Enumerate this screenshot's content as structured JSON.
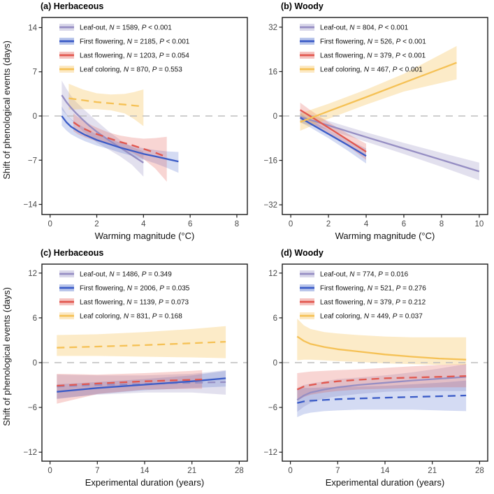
{
  "figure": {
    "ylabel": "Shift of phenological events (days)",
    "background": "#ffffff",
    "axis_color": "#1a1a1a",
    "tick_label_color": "#4a4a4a",
    "zero_line_color": "#bdbdbd"
  },
  "chart_data": [
    {
      "id": "a",
      "type": "line",
      "title": "(a) Herbaceous",
      "xlabel": "Warming magnitude (°C)",
      "ylabel": "Shift of phenological events (days)",
      "xlim": [
        -0.35,
        8.45
      ],
      "ylim": [
        -15.6,
        15.6
      ],
      "x_ticks": [
        0,
        2,
        4,
        6,
        8
      ],
      "y_ticks": [
        -14,
        -7,
        0,
        7,
        14
      ],
      "legend_position": "top-left",
      "grid": false,
      "series": [
        {
          "name": "Leaf-out",
          "N": "1589",
          "P": "< 0.001",
          "color": "#968EC3",
          "band_opacity": 0.28,
          "dashed": false,
          "x": [
            0.5,
            0.7,
            0.9,
            1.1,
            1.4,
            1.7,
            2.0,
            2.5,
            3.0,
            3.5,
            4.0
          ],
          "y": [
            3.3,
            2.2,
            1.3,
            0.5,
            -0.6,
            -1.6,
            -2.5,
            -3.8,
            -5.0,
            -6.2,
            -7.4
          ],
          "upper": [
            5.6,
            4.3,
            3.2,
            2.3,
            1.2,
            0.2,
            -0.8,
            -2.4,
            -3.8,
            -4.9,
            -5.6
          ],
          "lower": [
            1.0,
            0.2,
            -0.6,
            -1.3,
            -2.4,
            -3.3,
            -4.2,
            -5.3,
            -6.4,
            -7.7,
            -9.6
          ]
        },
        {
          "name": "First flowering",
          "N": "2185",
          "P": "< 0.001",
          "color": "#3A5BC7",
          "band_opacity": 0.22,
          "dashed": false,
          "x": [
            0.5,
            0.7,
            0.9,
            1.2,
            1.5,
            2.0,
            2.5,
            3.0,
            3.5,
            4.0,
            4.5,
            5.0,
            5.5
          ],
          "y": [
            0.0,
            -1.0,
            -1.7,
            -2.4,
            -3.0,
            -3.8,
            -4.4,
            -5.0,
            -5.5,
            -6.0,
            -6.4,
            -6.8,
            -7.2
          ],
          "upper": [
            1.5,
            0.3,
            -0.5,
            -1.3,
            -1.9,
            -2.9,
            -3.6,
            -4.2,
            -4.7,
            -5.1,
            -5.4,
            -5.6,
            -5.7
          ],
          "lower": [
            -1.5,
            -2.3,
            -2.9,
            -3.5,
            -4.0,
            -4.7,
            -5.2,
            -5.8,
            -6.3,
            -6.9,
            -7.5,
            -8.2,
            -9.0
          ]
        },
        {
          "name": "Last flowering",
          "N": "1203",
          "P": "= 0.054",
          "color": "#E2574E",
          "band_opacity": 0.25,
          "dashed": true,
          "x": [
            1.0,
            1.2,
            1.5,
            1.8,
            2.1,
            2.5,
            3.0,
            3.5,
            4.0,
            4.5,
            5.0
          ],
          "y": [
            -1.0,
            -1.5,
            -2.1,
            -2.6,
            -3.0,
            -3.5,
            -4.1,
            -4.6,
            -5.2,
            -5.8,
            -6.5
          ],
          "upper": [
            0.4,
            -0.2,
            -0.9,
            -1.5,
            -2.0,
            -2.6,
            -3.1,
            -3.4,
            -3.6,
            -3.5,
            -3.3
          ],
          "lower": [
            -2.4,
            -2.9,
            -3.4,
            -3.8,
            -4.1,
            -4.5,
            -5.1,
            -5.8,
            -6.8,
            -8.3,
            -10.4
          ]
        },
        {
          "name": "Leaf coloring",
          "N": "870",
          "P": "= 0.553",
          "color": "#F5C155",
          "band_opacity": 0.32,
          "dashed": true,
          "x": [
            0.8,
            1.4,
            2.0,
            2.6,
            3.2,
            3.6,
            4.0
          ],
          "y": [
            2.8,
            2.5,
            2.2,
            2.0,
            1.8,
            1.65,
            1.5
          ],
          "upper": [
            5.1,
            4.2,
            3.6,
            3.4,
            3.5,
            3.8,
            4.2
          ],
          "lower": [
            1.0,
            1.1,
            1.1,
            0.9,
            0.4,
            -0.5,
            -1.6
          ]
        }
      ]
    },
    {
      "id": "b",
      "type": "line",
      "title": "(b) Woody",
      "xlabel": "Warming magnitude (°C)",
      "ylabel": "Shift of phenological events (days)",
      "xlim": [
        -0.45,
        10.45
      ],
      "ylim": [
        -35.5,
        35.5
      ],
      "x_ticks": [
        0,
        2,
        4,
        6,
        8,
        10
      ],
      "y_ticks": [
        -32,
        -16,
        0,
        16,
        32
      ],
      "legend_position": "top-left",
      "grid": false,
      "series": [
        {
          "name": "Leaf-out",
          "N": "804",
          "P": "< 0.001",
          "color": "#968EC3",
          "band_opacity": 0.28,
          "dashed": false,
          "x": [
            0.5,
            2,
            4,
            6,
            8,
            10
          ],
          "y": [
            -0.3,
            -3.4,
            -7.6,
            -11.7,
            -15.8,
            -20.0
          ],
          "upper": [
            1.8,
            -1.8,
            -5.9,
            -9.7,
            -13.3,
            -16.8
          ],
          "lower": [
            -2.4,
            -5.0,
            -9.3,
            -13.7,
            -18.3,
            -23.2
          ]
        },
        {
          "name": "First flowering",
          "N": "526",
          "P": "< 0.001",
          "color": "#3A5BC7",
          "band_opacity": 0.22,
          "dashed": false,
          "x": [
            0.5,
            1,
            2,
            3,
            4
          ],
          "y": [
            -0.6,
            -2.6,
            -6.5,
            -10.4,
            -14.4
          ],
          "upper": [
            1.0,
            -1.2,
            -5.0,
            -8.4,
            -11.7
          ],
          "lower": [
            -2.2,
            -4.0,
            -8.0,
            -12.4,
            -17.1
          ]
        },
        {
          "name": "Last flowering",
          "N": "379",
          "P": "< 0.001",
          "color": "#E2574E",
          "band_opacity": 0.25,
          "dashed": false,
          "x": [
            0.5,
            1,
            2,
            3,
            4
          ],
          "y": [
            2.2,
            0.1,
            -4.2,
            -8.5,
            -12.9
          ],
          "upper": [
            4.8,
            2.3,
            -2.3,
            -6.3,
            -10.0
          ],
          "lower": [
            -0.9,
            -2.1,
            -6.1,
            -10.7,
            -15.8
          ]
        },
        {
          "name": "Leaf coloring",
          "N": "467",
          "P": "< 0.001",
          "color": "#F5C155",
          "band_opacity": 0.32,
          "dashed": false,
          "x": [
            0.5,
            2,
            4,
            6,
            8.8
          ],
          "y": [
            -2.2,
            1.7,
            6.8,
            12.0,
            19.2
          ],
          "upper": [
            0.9,
            4.4,
            9.5,
            15.2,
            25.2
          ],
          "lower": [
            -5.3,
            -1.0,
            4.1,
            8.8,
            13.2
          ]
        }
      ]
    },
    {
      "id": "c",
      "type": "line",
      "title": "(c) Herbaceous",
      "xlabel": "Experimental duration (years)",
      "ylabel": "Shift of phenological events (days)",
      "xlim": [
        -1.2,
        29.2
      ],
      "ylim": [
        -13.2,
        13.2
      ],
      "x_ticks": [
        0,
        7,
        14,
        21,
        28
      ],
      "y_ticks": [
        -12,
        -6,
        0,
        6,
        12
      ],
      "legend_position": "top-left",
      "grid": false,
      "series": [
        {
          "name": "Leaf-out",
          "N": "1486",
          "P": "= 0.349",
          "color": "#968EC3",
          "band_opacity": 0.28,
          "dashed": true,
          "x": [
            1,
            7,
            14,
            21,
            26
          ],
          "y": [
            -3.2,
            -3.0,
            -2.85,
            -2.7,
            -2.6
          ],
          "upper": [
            -1.6,
            -1.7,
            -1.7,
            -1.5,
            -1.0
          ],
          "lower": [
            -4.8,
            -4.3,
            -4.0,
            -4.0,
            -4.3
          ]
        },
        {
          "name": "First flowering",
          "N": "2006",
          "P": "= 0.035",
          "color": "#3A5BC7",
          "band_opacity": 0.22,
          "dashed": false,
          "x": [
            1,
            7,
            14,
            21,
            26
          ],
          "y": [
            -3.9,
            -3.4,
            -2.95,
            -2.5,
            -2.1
          ],
          "upper": [
            -2.9,
            -2.6,
            -2.2,
            -1.7,
            -1.1
          ],
          "lower": [
            -4.9,
            -4.2,
            -3.7,
            -3.4,
            -3.2
          ]
        },
        {
          "name": "Last flowering",
          "N": "1139",
          "P": "= 0.073",
          "color": "#E2574E",
          "band_opacity": 0.25,
          "dashed": true,
          "x": [
            1,
            7,
            14,
            21,
            22.5
          ],
          "y": [
            -3.1,
            -2.8,
            -2.5,
            -2.3,
            -2.25
          ],
          "upper": [
            -1.5,
            -1.6,
            -1.4,
            -1.1,
            -1.0
          ],
          "lower": [
            -5.5,
            -4.2,
            -3.6,
            -3.5,
            -3.5
          ]
        },
        {
          "name": "Leaf coloring",
          "N": "831",
          "P": "= 0.168",
          "color": "#F5C155",
          "band_opacity": 0.32,
          "dashed": true,
          "x": [
            1,
            7,
            14,
            21,
            26
          ],
          "y": [
            2.0,
            2.15,
            2.35,
            2.6,
            2.8
          ],
          "upper": [
            3.7,
            3.8,
            4.1,
            4.5,
            4.9
          ],
          "lower": [
            0.9,
            0.9,
            0.8,
            0.7,
            0.6
          ]
        }
      ]
    },
    {
      "id": "d",
      "type": "line",
      "title": "(d) Woody",
      "xlabel": "Experimental duration (years)",
      "ylabel": "Shift of phenological events (days)",
      "xlim": [
        -1.2,
        29.2
      ],
      "ylim": [
        -13.2,
        13.2
      ],
      "x_ticks": [
        0,
        7,
        14,
        21,
        28
      ],
      "y_ticks": [
        -12,
        -6,
        0,
        6,
        12
      ],
      "legend_position": "top-left",
      "grid": false,
      "series": [
        {
          "name": "Leaf-out",
          "N": "774",
          "P": "= 0.016",
          "color": "#968EC3",
          "band_opacity": 0.28,
          "dashed": false,
          "x": [
            1,
            2,
            3,
            5,
            7,
            10,
            14,
            18,
            22,
            26
          ],
          "y": [
            -5.0,
            -4.4,
            -4.0,
            -3.6,
            -3.3,
            -3.0,
            -2.7,
            -2.4,
            -2.15,
            -1.9
          ],
          "upper": [
            -3.4,
            -3.0,
            -2.8,
            -2.5,
            -2.2,
            -2.0,
            -1.7,
            -1.3,
            -0.8,
            -0.2
          ],
          "lower": [
            -6.6,
            -5.9,
            -5.4,
            -4.8,
            -4.5,
            -4.2,
            -3.9,
            -3.8,
            -3.8,
            -3.8
          ]
        },
        {
          "name": "First flowering",
          "N": "521",
          "P": "= 0.276",
          "color": "#3A5BC7",
          "band_opacity": 0.22,
          "dashed": true,
          "x": [
            1,
            2,
            3,
            5,
            7,
            10,
            14,
            18,
            22,
            26
          ],
          "y": [
            -5.4,
            -5.2,
            -5.1,
            -5.0,
            -4.9,
            -4.8,
            -4.7,
            -4.6,
            -4.5,
            -4.4
          ],
          "upper": [
            -3.5,
            -3.4,
            -3.4,
            -3.3,
            -3.3,
            -3.2,
            -3.1,
            -2.9,
            -2.7,
            -2.4
          ],
          "lower": [
            -7.3,
            -6.9,
            -6.7,
            -6.5,
            -6.4,
            -6.3,
            -6.3,
            -6.3,
            -6.4,
            -6.5
          ]
        },
        {
          "name": "Last flowering",
          "N": "379",
          "P": "= 0.212",
          "color": "#E2574E",
          "band_opacity": 0.25,
          "dashed": true,
          "x": [
            1,
            2,
            3,
            5,
            7,
            10,
            14,
            18,
            22,
            26
          ],
          "y": [
            -3.6,
            -3.2,
            -3.0,
            -2.7,
            -2.5,
            -2.3,
            -2.1,
            -2.0,
            -1.9,
            -1.8
          ],
          "upper": [
            -1.4,
            -1.3,
            -1.2,
            -1.1,
            -1.0,
            -0.9,
            -0.7,
            -0.5,
            -0.3,
            -0.2
          ],
          "lower": [
            -5.1,
            -4.6,
            -4.3,
            -4.0,
            -3.8,
            -3.6,
            -3.5,
            -3.4,
            -3.3,
            -3.3
          ]
        },
        {
          "name": "Leaf coloring",
          "N": "449",
          "P": "= 0.037",
          "color": "#F5C155",
          "band_opacity": 0.32,
          "dashed": false,
          "x": [
            1,
            2,
            3,
            5,
            7,
            10,
            14,
            18,
            22,
            26
          ],
          "y": [
            3.5,
            2.9,
            2.5,
            2.1,
            1.8,
            1.5,
            1.1,
            0.8,
            0.55,
            0.4
          ],
          "upper": [
            5.9,
            5.0,
            4.5,
            4.1,
            3.9,
            3.7,
            3.5,
            3.4,
            3.4,
            3.4
          ],
          "lower": [
            0.3,
            0.4,
            0.4,
            0.3,
            0.2,
            0.1,
            -0.1,
            -0.2,
            -0.3,
            -0.3
          ]
        }
      ]
    }
  ]
}
